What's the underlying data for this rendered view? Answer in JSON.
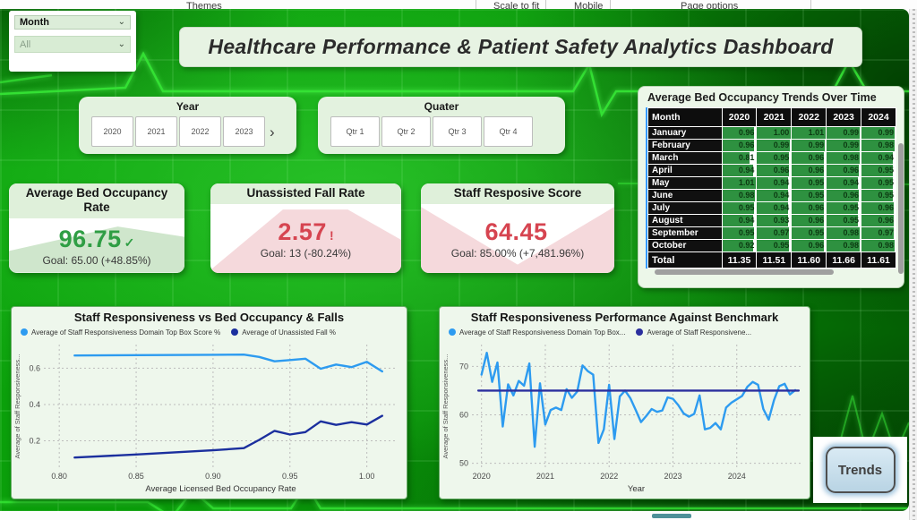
{
  "menu_bar": {
    "items": [
      "Themes",
      "Scale to fit",
      "Mobile",
      "Page options"
    ]
  },
  "filters": {
    "field_label": "Month",
    "value_label": "All"
  },
  "title": "Healthcare Performance & Patient Safety Analytics Dashboard",
  "year_slicer": {
    "title": "Year",
    "options": [
      "2020",
      "2021",
      "2022",
      "2023"
    ],
    "next_arrow": "›"
  },
  "quarter_slicer": {
    "title": "Quater",
    "options": [
      "Qtr 1",
      "Qtr 2",
      "Qtr 3",
      "Qtr 4"
    ]
  },
  "occupancy_table": {
    "title": "Average Bed Occupancy Trends Over Time",
    "columns": [
      "Month",
      "2020",
      "2021",
      "2022",
      "2023",
      "2024"
    ],
    "rows": [
      {
        "month": "January",
        "values": [
          0.96,
          1.0,
          1.01,
          0.99,
          0.99
        ]
      },
      {
        "month": "February",
        "values": [
          0.96,
          0.99,
          0.99,
          0.99,
          0.98
        ]
      },
      {
        "month": "March",
        "values": [
          0.81,
          0.95,
          0.96,
          0.98,
          0.94
        ]
      },
      {
        "month": "April",
        "values": [
          0.94,
          0.96,
          0.96,
          0.96,
          0.95
        ]
      },
      {
        "month": "May",
        "values": [
          1.01,
          0.94,
          0.95,
          0.94,
          0.95
        ]
      },
      {
        "month": "June",
        "values": [
          0.98,
          0.94,
          0.95,
          0.96,
          0.95
        ]
      },
      {
        "month": "July",
        "values": [
          0.95,
          0.94,
          0.96,
          0.95,
          0.96
        ]
      },
      {
        "month": "August",
        "values": [
          0.94,
          0.93,
          0.96,
          0.95,
          0.96
        ]
      },
      {
        "month": "September",
        "values": [
          0.95,
          0.97,
          0.95,
          0.98,
          0.97
        ]
      },
      {
        "month": "October",
        "values": [
          0.92,
          0.95,
          0.96,
          0.98,
          0.98
        ]
      }
    ],
    "total": {
      "label": "Total",
      "values": [
        "11.35",
        "11.51",
        "11.60",
        "11.66",
        "11.61"
      ]
    }
  },
  "kpis": [
    {
      "title": "Average Bed Occupancy Rate",
      "value": "96.75",
      "indicator": "✓",
      "goal": "Goal: 65.00 (+48.85%)",
      "status": "good"
    },
    {
      "title": "Unassisted Fall Rate",
      "value": "2.57",
      "indicator": "!",
      "goal": "Goal: 13 (-80.24%)",
      "status": "bad"
    },
    {
      "title": "Staff Resposive Score",
      "value": "64.45",
      "indicator": "",
      "goal": "Goal: 85.00% (+7,481.96%)",
      "status": "bad"
    }
  ],
  "trends_button": {
    "label": "Trends"
  },
  "colors": {
    "kpi_good": "#2f9e44",
    "kpi_bad": "#d64450",
    "bar_green": "#2e9140",
    "series_light_blue": "#2d9bf0",
    "series_navy": "#1b2f9e",
    "bg_green": "#0a9a0a"
  },
  "chart_data": [
    {
      "type": "line",
      "title": "Staff Responsiveness vs Bed Occupancy & Falls",
      "xlabel": "Average Licensed Bed Occupancy Rate",
      "ylabel": "Average of Staff Responsiveness...",
      "xlim": [
        0.79,
        1.02
      ],
      "ylim": [
        0.05,
        0.73
      ],
      "xticks": [
        0.8,
        0.85,
        0.9,
        0.95,
        1.0
      ],
      "xtick_labels": [
        "0.80",
        "0.85",
        "0.90",
        "0.95",
        "1.00"
      ],
      "yticks": [
        0.2,
        0.4,
        0.6
      ],
      "ytick_labels": [
        "0.2",
        "0.4",
        "0.6"
      ],
      "grid": true,
      "legend_position": "top",
      "series": [
        {
          "name": "Average of Staff Responsiveness Domain Top Box Score %",
          "color": "#2d9bf0",
          "x": [
            0.81,
            0.85,
            0.9,
            0.92,
            0.93,
            0.94,
            0.95,
            0.96,
            0.97,
            0.98,
            0.99,
            1.0,
            1.01
          ],
          "y": [
            0.67,
            0.672,
            0.674,
            0.675,
            0.662,
            0.638,
            0.645,
            0.652,
            0.597,
            0.62,
            0.606,
            0.635,
            0.582
          ]
        },
        {
          "name": "Average of Unassisted Fall %",
          "color": "#1b2f9e",
          "x": [
            0.81,
            0.85,
            0.9,
            0.92,
            0.93,
            0.94,
            0.95,
            0.96,
            0.97,
            0.98,
            0.99,
            1.0,
            1.01
          ],
          "y": [
            0.108,
            0.125,
            0.148,
            0.16,
            0.205,
            0.255,
            0.235,
            0.248,
            0.307,
            0.288,
            0.303,
            0.29,
            0.338
          ]
        }
      ]
    },
    {
      "type": "line",
      "title": "Staff Responsiveness Performance Against Benchmark",
      "xlabel": "Year",
      "ylabel": "Average of Staff Responsiveness...",
      "xlim": [
        2019.85,
        2025.0
      ],
      "ylim": [
        49,
        74.5
      ],
      "xticks": [
        2020,
        2021,
        2022,
        2023,
        2024
      ],
      "xtick_labels": [
        "2020",
        "2021",
        "2022",
        "2023",
        "2024"
      ],
      "yticks": [
        50,
        60,
        70
      ],
      "ytick_labels": [
        "50",
        "60",
        "70"
      ],
      "grid": true,
      "legend_position": "top",
      "series": [
        {
          "name": "Average of Staff Responsiveness Domain Top Box...",
          "color": "#2d9bf0",
          "x_start": 2020,
          "x_step": 0.08333,
          "y": [
            68.3,
            72.8,
            66.8,
            70.8,
            57.6,
            66.3,
            64.0,
            67.0,
            66.0,
            70.6,
            53.4,
            66.5,
            58.0,
            61.0,
            61.5,
            61.0,
            65.3,
            63.5,
            64.8,
            70.2,
            69.0,
            68.3,
            54.2,
            57.0,
            66.2,
            55.0,
            63.8,
            65.0,
            63.4,
            61.0,
            58.5,
            59.8,
            61.2,
            60.6,
            60.9,
            63.6,
            63.3,
            62.0,
            60.3,
            59.6,
            60.2,
            64.0,
            57.0,
            57.3,
            58.3,
            57.0,
            61.5,
            62.5,
            63.2,
            63.9,
            65.8,
            66.8,
            66.2,
            61.2,
            59.0,
            63.0,
            65.9,
            66.4,
            64.2,
            65.1
          ]
        },
        {
          "name": "Average of Staff Responsivene...",
          "color": "#2b2f9e",
          "x": [
            2019.95,
            2024.97
          ],
          "y": [
            65,
            65
          ]
        }
      ]
    }
  ]
}
